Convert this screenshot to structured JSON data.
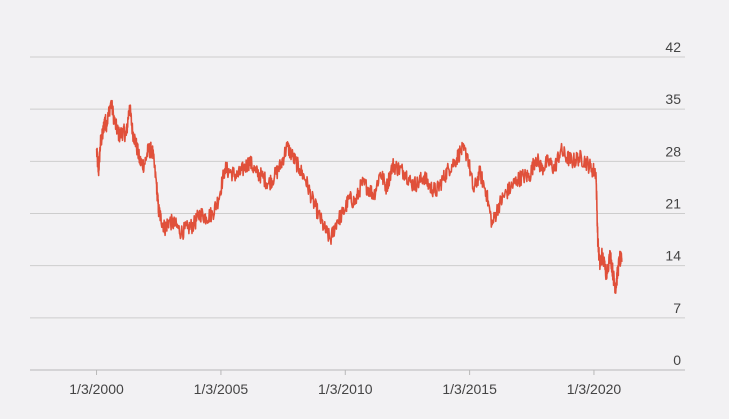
{
  "chart_data": {
    "type": "line",
    "title": "",
    "xlabel": "",
    "ylabel": "",
    "ylim": [
      0,
      42
    ],
    "y_ticks": [
      "42",
      "35",
      "28",
      "21",
      "14",
      "7",
      "0"
    ],
    "x_ticks": [
      {
        "date": "2000-01-03",
        "label": "1/3/2000"
      },
      {
        "date": "2005-01-03",
        "label": "1/3/2005"
      },
      {
        "date": "2010-01-03",
        "label": "1/3/2010"
      },
      {
        "date": "2015-01-03",
        "label": "1/3/2015"
      },
      {
        "date": "2020-01-03",
        "label": "1/3/2020"
      }
    ],
    "xlim": [
      "1997-05-01",
      "2023-09-01"
    ],
    "grid": "horizontal",
    "y_axis_position": "right",
    "line_color": "#e0503a",
    "series": [
      {
        "x": [
          "2000-01-03",
          "2000-02-01",
          "2000-03-01",
          "2000-04-01",
          "2000-05-01",
          "2000-06-01",
          "2000-08-01",
          "2000-10-01",
          "2000-12-01",
          "2001-02-01",
          "2001-03-15",
          "2001-05-01",
          "2001-06-15",
          "2001-08-01",
          "2001-10-01",
          "2001-12-01",
          "2002-02-01",
          "2002-04-01",
          "2002-06-01",
          "2002-07-01",
          "2002-08-01",
          "2002-10-01",
          "2002-12-01",
          "2003-03-01",
          "2003-06-01",
          "2003-09-01",
          "2003-12-01",
          "2004-03-01",
          "2004-06-01",
          "2004-09-01",
          "2004-12-01",
          "2005-03-01",
          "2005-06-01",
          "2005-09-01",
          "2005-12-01",
          "2006-03-01",
          "2006-06-01",
          "2006-09-01",
          "2006-12-01",
          "2007-03-01",
          "2007-06-01",
          "2007-09-01",
          "2007-12-01",
          "2008-03-01",
          "2008-06-01",
          "2008-09-01",
          "2008-12-01",
          "2009-03-01",
          "2009-06-01",
          "2009-09-01",
          "2009-12-01",
          "2010-03-01",
          "2010-06-01",
          "2010-09-01",
          "2010-12-01",
          "2011-03-01",
          "2011-06-01",
          "2011-09-01",
          "2011-12-01",
          "2012-03-01",
          "2012-06-01",
          "2012-09-01",
          "2012-12-01",
          "2013-03-01",
          "2013-06-01",
          "2013-09-01",
          "2013-12-01",
          "2014-03-01",
          "2014-06-01",
          "2014-09-01",
          "2014-12-01",
          "2015-03-01",
          "2015-06-01",
          "2015-09-01",
          "2015-12-01",
          "2016-03-01",
          "2016-06-01",
          "2016-09-01",
          "2016-12-01",
          "2017-03-01",
          "2017-06-01",
          "2017-09-01",
          "2017-12-01",
          "2018-03-01",
          "2018-06-01",
          "2018-09-01",
          "2018-12-01",
          "2019-03-01",
          "2019-06-01",
          "2019-09-01",
          "2019-12-01",
          "2020-02-01",
          "2020-03-01",
          "2020-04-01",
          "2020-05-01",
          "2020-07-01",
          "2020-09-01",
          "2020-10-15",
          "2020-11-15",
          "2020-12-15",
          "2021-01-15",
          "2021-02-15"
        ],
        "y": [
          29.5,
          26.5,
          30.5,
          31.5,
          33.5,
          33,
          36,
          33,
          31.5,
          32,
          31.5,
          35.5,
          32,
          30.5,
          28,
          27.5,
          29.5,
          29.5,
          25,
          21.5,
          20.5,
          19,
          20,
          19.5,
          18.5,
          19,
          19.5,
          21,
          20.5,
          21,
          23,
          27,
          26.5,
          26,
          27,
          28,
          26.5,
          26,
          25,
          26,
          27.5,
          30,
          28.5,
          27,
          25.5,
          23,
          21,
          19,
          17.5,
          20,
          21,
          23,
          22.5,
          25,
          24.5,
          23.5,
          26.5,
          24.5,
          27.5,
          27,
          26.5,
          25,
          25,
          26,
          24.5,
          24,
          25.5,
          27,
          28,
          29.5,
          29,
          24,
          26.5,
          24,
          19.5,
          22,
          23.5,
          24.5,
          25.5,
          26,
          26,
          28.5,
          27,
          28,
          27,
          29.5,
          28.5,
          28,
          28.5,
          28,
          27,
          26.5,
          17,
          14,
          15.5,
          13,
          15.5,
          12.5,
          11,
          13,
          15,
          14.5
        ]
      }
    ]
  }
}
